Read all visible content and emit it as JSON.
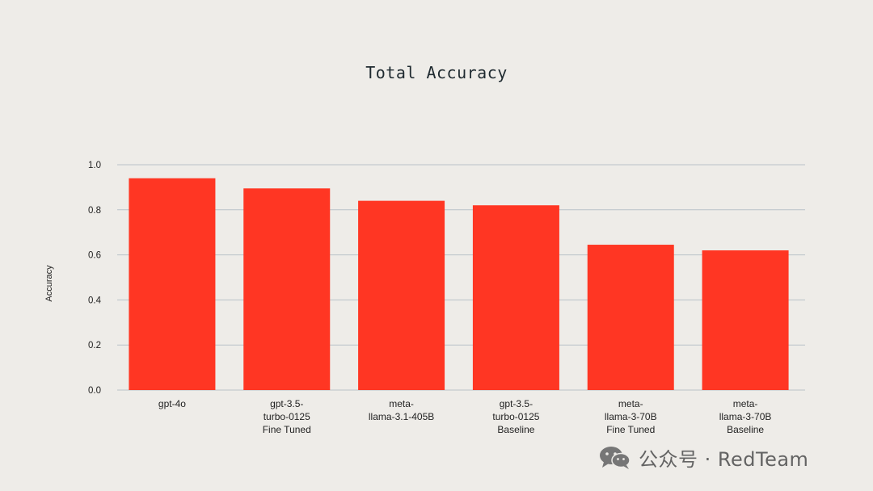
{
  "chart_data": {
    "type": "bar",
    "title": "Total Accuracy",
    "xlabel": "",
    "ylabel": "Accuracy",
    "ylim": [
      0,
      1.0
    ],
    "yticks": [
      "0.0",
      "0.2",
      "0.4",
      "0.6",
      "0.8",
      "1.0"
    ],
    "ytick_values": [
      0,
      0.2,
      0.4,
      0.6,
      0.8,
      1.0
    ],
    "grid": true,
    "bar_color": "#ff3623",
    "categories": [
      [
        "gpt-4o"
      ],
      [
        "gpt-3.5-",
        "turbo-0125",
        "Fine Tuned"
      ],
      [
        "meta-",
        "llama-3.1-405B"
      ],
      [
        "gpt-3.5-",
        "turbo-0125",
        "Baseline"
      ],
      [
        "meta-",
        "llama-3-70B",
        "Fine Tuned"
      ],
      [
        "meta-",
        "llama-3-70B",
        "Baseline"
      ]
    ],
    "values": [
      0.94,
      0.895,
      0.84,
      0.82,
      0.645,
      0.62
    ]
  },
  "watermark": {
    "text": "公众号 · RedTeam",
    "icon": "wechat-icon"
  }
}
